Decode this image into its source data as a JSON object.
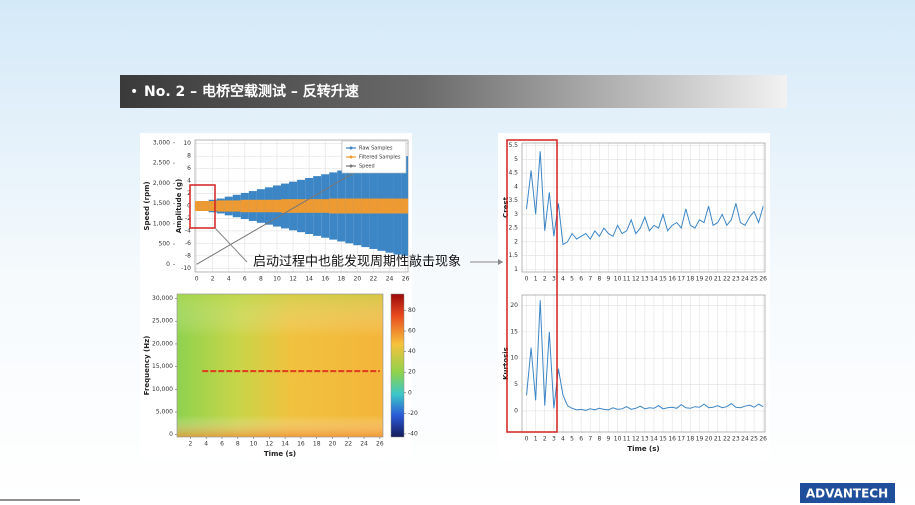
{
  "slide": {
    "title": "No. 2 – 电桥空载测试 – 反转升速",
    "annotation": "启动过程中也能发现周期性敲击现象",
    "logo": "ADVANTECH"
  },
  "chart_data": [
    {
      "type": "envelope",
      "ylabel": "Amplitude (g)",
      "y2label": "Speed (rpm)",
      "x": [
        0,
        1,
        2,
        3,
        4,
        5,
        6,
        7,
        8,
        9,
        10,
        11,
        12,
        13,
        14,
        15,
        16,
        17,
        18,
        19,
        20,
        21,
        22,
        23,
        24,
        25,
        26
      ],
      "xlim": [
        -0.2,
        26.3
      ],
      "xticks": [
        0,
        2,
        4,
        6,
        8,
        10,
        12,
        14,
        16,
        18,
        20,
        22,
        24,
        26
      ],
      "ylim": [
        -10.6,
        10.6
      ],
      "yticks": [
        -10,
        -8,
        -6,
        -4,
        -2,
        0,
        2,
        4,
        6,
        8,
        10
      ],
      "y2lim": [
        -190,
        3070
      ],
      "y2ticks": [
        0,
        500,
        {
          "value": 1000,
          "label": "1,000"
        },
        {
          "value": 1500,
          "label": "1,500"
        },
        {
          "value": 2000,
          "label": "2,000"
        },
        {
          "value": 2500,
          "label": "2,500"
        },
        {
          "value": 3000,
          "label": "3,000"
        }
      ],
      "grid": true,
      "legend": "top-right",
      "series": [
        {
          "name": "Raw Samples",
          "color": "#3d86c6",
          "values": [
            0.6,
            0.8,
            1.0,
            1.2,
            1.5,
            1.8,
            2.1,
            2.4,
            2.7,
            3.0,
            3.3,
            3.6,
            3.9,
            4.2,
            4.5,
            4.8,
            5.1,
            5.4,
            5.7,
            6.0,
            6.3,
            6.6,
            6.9,
            7.2,
            7.5,
            7.8,
            8.0
          ]
        },
        {
          "name": "Filtered Samples",
          "color": "#ee9a32",
          "values": [
            0.8,
            0.8,
            0.8,
            0.9,
            0.9,
            0.9,
            1.0,
            1.0,
            1.0,
            1.0,
            1.0,
            1.1,
            1.1,
            1.1,
            1.1,
            1.1,
            1.1,
            1.2,
            1.2,
            1.2,
            1.2,
            1.2,
            1.2,
            1.2,
            1.2,
            1.2,
            1.2
          ]
        },
        {
          "name": "Speed",
          "color": "#777777",
          "axis": "y2",
          "values": [
            0,
            115,
            231,
            346,
            462,
            577,
            692,
            808,
            923,
            1038,
            1154,
            1269,
            1385,
            1500,
            1615,
            1731,
            1846,
            1962,
            2077,
            2192,
            2308,
            2423,
            2538,
            2654,
            2769,
            2885,
            3000
          ]
        }
      ]
    },
    {
      "type": "heatmap",
      "xlabel": "Time (s)",
      "ylabel": "Frequency (Hz)",
      "xlim": [
        0.3,
        26.4
      ],
      "xticks": [
        2,
        4,
        6,
        8,
        10,
        12,
        14,
        16,
        18,
        20,
        22,
        24,
        26
      ],
      "ylim": [
        -500,
        31000
      ],
      "yticks": [
        0,
        {
          "value": 5000,
          "label": "5,000"
        },
        {
          "value": 10000,
          "label": "10,000"
        },
        {
          "value": 15000,
          "label": "15,000"
        },
        {
          "value": 20000,
          "label": "20,000"
        },
        {
          "value": 25000,
          "label": "25,000"
        },
        {
          "value": 30000,
          "label": "30,000"
        }
      ],
      "zlim": [
        -43,
        96
      ],
      "zticks": [
        -40,
        -20,
        0,
        20,
        40,
        60,
        80
      ],
      "series": [
        {
          "color": "#e03a1e",
          "x": [
            3.5,
            26
          ],
          "values": [
            14000,
            14000
          ]
        }
      ]
    },
    {
      "type": "line",
      "ylabel": "Crest",
      "x": [
        0,
        0.5,
        1,
        1.5,
        2,
        2.5,
        3,
        3.5,
        4,
        4.5,
        5,
        5.5,
        6,
        6.5,
        7,
        7.5,
        8,
        8.5,
        9,
        9.5,
        10,
        10.5,
        11,
        11.5,
        12,
        12.5,
        13,
        13.5,
        14,
        14.5,
        15,
        15.5,
        16,
        16.5,
        17,
        17.5,
        18,
        18.5,
        19,
        19.5,
        20,
        20.5,
        21,
        21.5,
        22,
        22.5,
        23,
        23.5,
        24,
        24.5,
        25,
        25.5,
        26
      ],
      "xlim": [
        -0.5,
        26.2
      ],
      "xticks": [
        0,
        1,
        2,
        3,
        4,
        5,
        6,
        7,
        8,
        9,
        10,
        11,
        12,
        13,
        14,
        15,
        16,
        17,
        18,
        19,
        20,
        21,
        22,
        23,
        24,
        25,
        26
      ],
      "ylim": [
        0.9,
        5.6
      ],
      "yticks": [
        1,
        1.5,
        2,
        2.5,
        3,
        3.5,
        4,
        4.5,
        5,
        5.5
      ],
      "grid": true,
      "series": [
        {
          "color": "#3d86c6",
          "values": [
            3.2,
            4.6,
            3.0,
            5.3,
            2.4,
            3.8,
            2.2,
            3.4,
            1.9,
            2.0,
            2.3,
            2.1,
            2.2,
            2.3,
            2.1,
            2.4,
            2.2,
            2.5,
            2.3,
            2.2,
            2.6,
            2.3,
            2.4,
            2.8,
            2.3,
            2.5,
            2.9,
            2.4,
            2.6,
            2.5,
            3.0,
            2.4,
            2.6,
            2.7,
            2.5,
            3.2,
            2.6,
            2.5,
            2.8,
            2.7,
            3.3,
            2.6,
            2.7,
            3.0,
            2.6,
            2.8,
            3.4,
            2.7,
            2.6,
            2.9,
            3.1,
            2.7,
            3.3
          ]
        }
      ]
    },
    {
      "type": "line",
      "ylabel": "Kurtosis",
      "xlabel": "Time (s)",
      "x": [
        0,
        0.5,
        1,
        1.5,
        2,
        2.5,
        3,
        3.5,
        4,
        4.5,
        5,
        5.5,
        6,
        6.5,
        7,
        7.5,
        8,
        8.5,
        9,
        9.5,
        10,
        10.5,
        11,
        11.5,
        12,
        12.5,
        13,
        13.5,
        14,
        14.5,
        15,
        15.5,
        16,
        16.5,
        17,
        17.5,
        18,
        18.5,
        19,
        19.5,
        20,
        20.5,
        21,
        21.5,
        22,
        22.5,
        23,
        23.5,
        24,
        24.5,
        25,
        25.5,
        26
      ],
      "xlim": [
        -0.5,
        26.2
      ],
      "xticks": [
        0,
        1,
        2,
        3,
        4,
        5,
        6,
        7,
        8,
        9,
        10,
        11,
        12,
        13,
        14,
        15,
        16,
        17,
        18,
        19,
        20,
        21,
        22,
        23,
        24,
        25,
        26
      ],
      "ylim": [
        -4,
        22
      ],
      "yticks": [
        0,
        5,
        10,
        15,
        20
      ],
      "grid": true,
      "series": [
        {
          "color": "#3d86c6",
          "values": [
            3,
            12,
            2,
            21,
            1,
            15,
            0.5,
            8,
            3,
            1,
            0.5,
            0.2,
            0.3,
            0.1,
            0.4,
            0.2,
            0.5,
            0.3,
            0.2,
            0.6,
            0.3,
            0.4,
            0.8,
            0.3,
            0.5,
            0.9,
            0.4,
            0.6,
            0.5,
            1.0,
            0.4,
            0.6,
            0.7,
            0.5,
            1.2,
            0.6,
            0.5,
            0.8,
            0.7,
            1.3,
            0.6,
            0.7,
            1.0,
            0.6,
            0.8,
            1.4,
            0.7,
            0.6,
            0.9,
            1.1,
            0.7,
            1.3,
            0.8
          ]
        }
      ]
    }
  ]
}
